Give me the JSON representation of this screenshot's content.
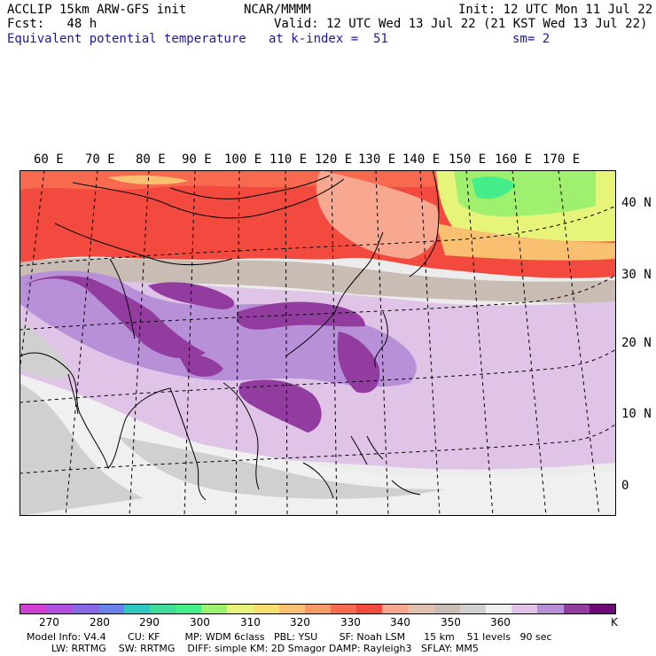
{
  "header": {
    "model": "ACCLIP 15km ARW-GFS init",
    "org": "NCAR/MMMM",
    "init": "Init: 12 UTC Mon 11 Jul 22",
    "fcst": "Fcst:   48 h",
    "valid": "Valid: 12 UTC Wed 13 Jul 22 (21 KST Wed 13 Jul 22)",
    "field": "Equivalent potential temperature",
    "level": "at k-index =  51",
    "smooth": "sm= 2"
  },
  "map": {
    "lon_labels": [
      "60 E",
      "70 E",
      "80 E",
      "90 E",
      "100 E",
      "110 E",
      "120 E",
      "130 E",
      "140 E",
      "150 E",
      "160 E",
      "170 E"
    ],
    "lat_labels": [
      "40 N",
      "30 N",
      "20 N",
      "10 N",
      "0"
    ]
  },
  "colorbar": {
    "colors": [
      "#d23ed2",
      "#b04ee0",
      "#8868e6",
      "#6a82ec",
      "#2ec8c0",
      "#3fdc9a",
      "#44ee8a",
      "#a0f070",
      "#e6f47a",
      "#f8e070",
      "#f8c070",
      "#f89a68",
      "#f86a50",
      "#f24a3e",
      "#f8a890",
      "#e0c0b0",
      "#c8bcb4",
      "#d0d0d0",
      "#f0f0f0",
      "#e0c4e8",
      "#b890d8",
      "#923ca0",
      "#6e0a78"
    ],
    "labels": [
      "270",
      "280",
      "290",
      "300",
      "310",
      "320",
      "330",
      "340",
      "350",
      "360",
      "K"
    ],
    "colors_meaning": "shaded equivalent potential temperature bins"
  },
  "footer": {
    "line1": "Model Info: V4.4       CU: KF        MP: WDM 6class   PBL: YSU       SF: Noah LSM      15 km    51 levels   90 sec",
    "line2": "        LW: RRTMG    SW: RRTMG    DIFF: simple KM: 2D Smagor DAMP: Rayleigh3   SFLAY: MM5"
  }
}
